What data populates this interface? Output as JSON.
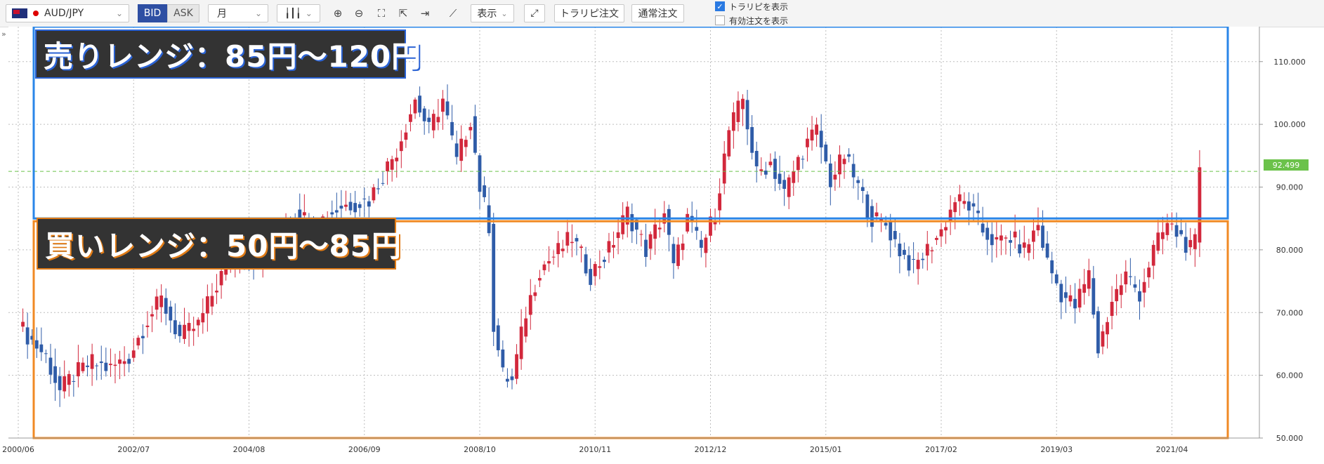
{
  "toolbar": {
    "pair": "AUD/JPY",
    "bid_label": "BID",
    "ask_label": "ASK",
    "period": "月",
    "show_label": "表示",
    "traribi_order": "トラリピ注文",
    "normal_order": "通常注文",
    "check_show_traribi": "トラリピを表示",
    "check_show_valid": "有効注文を表示",
    "show_traribi_checked": true,
    "show_valid_checked": false,
    "icons": [
      "candlestick-icon",
      "zoom-in-icon",
      "zoom-out-icon",
      "fit-icon",
      "cursor-icon",
      "scroll-end-icon",
      "indicator-icon",
      "expand-icon"
    ]
  },
  "colors": {
    "up": "#d2283c",
    "down": "#2f5ca8",
    "sell_box": "#2a86e8",
    "buy_box": "#f08a24",
    "current": "#6bc24a"
  },
  "annotations": {
    "sell_range": "売りレンジ：85円～120円",
    "buy_range": "買いレンジ：50円～85円"
  },
  "current_price": "92.499",
  "chart_data": {
    "type": "candlestick",
    "instrument": "AUD/JPY",
    "timeframe": "月",
    "ylim": [
      50,
      114
    ],
    "y_ticks": [
      "50.000",
      "60.000",
      "70.000",
      "80.000",
      "90.000",
      "100.000",
      "110.000"
    ],
    "y_tick_values": [
      50,
      60,
      70,
      80,
      90,
      100,
      110
    ],
    "x_ticks": [
      "2000/06",
      "2002/07",
      "2004/08",
      "2006/09",
      "2008/10",
      "2010/11",
      "2012/12",
      "2015/01",
      "2017/02",
      "2019/03",
      "2021/04"
    ],
    "x_tick_month_index": [
      0,
      25,
      50,
      75,
      100,
      125,
      150,
      175,
      200,
      225,
      250
    ],
    "sell_range": [
      85,
      120
    ],
    "buy_range": [
      50,
      85
    ],
    "current": 92.499,
    "anchors": [
      [
        0,
        68
      ],
      [
        6,
        63
      ],
      [
        9,
        57.5
      ],
      [
        12,
        60
      ],
      [
        16,
        62
      ],
      [
        20,
        61
      ],
      [
        24,
        63
      ],
      [
        28,
        69
      ],
      [
        31,
        72
      ],
      [
        35,
        66
      ],
      [
        39,
        68
      ],
      [
        44,
        76
      ],
      [
        48,
        80
      ],
      [
        52,
        78
      ],
      [
        56,
        83
      ],
      [
        60,
        86
      ],
      [
        64,
        84
      ],
      [
        70,
        87
      ],
      [
        76,
        88
      ],
      [
        82,
        96
      ],
      [
        86,
        104
      ],
      [
        89,
        99
      ],
      [
        92,
        104
      ],
      [
        95,
        94
      ],
      [
        98,
        101
      ],
      [
        100,
        90
      ],
      [
        102,
        84
      ],
      [
        103,
        68
      ],
      [
        105,
        60
      ],
      [
        107,
        59
      ],
      [
        110,
        70
      ],
      [
        113,
        77
      ],
      [
        116,
        79
      ],
      [
        120,
        82
      ],
      [
        124,
        76
      ],
      [
        128,
        80
      ],
      [
        132,
        86
      ],
      [
        136,
        80
      ],
      [
        140,
        86
      ],
      [
        142,
        77
      ],
      [
        145,
        85
      ],
      [
        148,
        80
      ],
      [
        151,
        86
      ],
      [
        154,
        99
      ],
      [
        157,
        104
      ],
      [
        160,
        92
      ],
      [
        163,
        94
      ],
      [
        166,
        89
      ],
      [
        170,
        96
      ],
      [
        173,
        99
      ],
      [
        176,
        91
      ],
      [
        179,
        95
      ],
      [
        182,
        90
      ],
      [
        185,
        85
      ],
      [
        188,
        84
      ],
      [
        191,
        80
      ],
      [
        194,
        77
      ],
      [
        197,
        80
      ],
      [
        200,
        83
      ],
      [
        203,
        88
      ],
      [
        206,
        87
      ],
      [
        209,
        83
      ],
      [
        212,
        81
      ],
      [
        215,
        82
      ],
      [
        218,
        80
      ],
      [
        221,
        84
      ],
      [
        223,
        78
      ],
      [
        226,
        73
      ],
      [
        229,
        71
      ],
      [
        232,
        76
      ],
      [
        234,
        64
      ],
      [
        237,
        72
      ],
      [
        240,
        76
      ],
      [
        243,
        73
      ],
      [
        246,
        80
      ],
      [
        249,
        84
      ],
      [
        252,
        82
      ],
      [
        254,
        80
      ],
      [
        255,
        81
      ],
      [
        256,
        92
      ]
    ]
  }
}
